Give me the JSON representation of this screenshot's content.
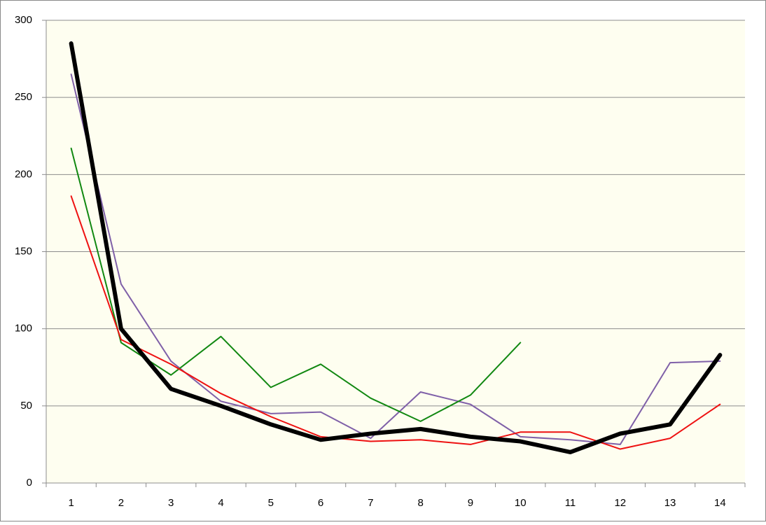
{
  "chart_data": {
    "type": "line",
    "categories": [
      "1",
      "2",
      "3",
      "4",
      "5",
      "6",
      "7",
      "8",
      "9",
      "10",
      "11",
      "12",
      "13",
      "14"
    ],
    "series": [
      {
        "color": "#000000",
        "values": [
          285,
          100,
          61,
          50,
          38,
          28,
          32,
          35,
          30,
          27,
          20,
          32,
          38,
          83
        ]
      },
      {
        "color": "#ee1111",
        "values": [
          186,
          93,
          77,
          58,
          43,
          30,
          27,
          28,
          25,
          33,
          33,
          22,
          29,
          51
        ]
      },
      {
        "color": "#118811",
        "values": [
          217,
          91,
          70,
          95,
          62,
          77,
          55,
          40,
          57,
          91,
          null,
          null,
          null,
          null
        ]
      },
      {
        "color": "#7f60a8",
        "values": [
          265,
          129,
          79,
          53,
          45,
          46,
          29,
          59,
          51,
          30,
          28,
          25,
          78,
          79
        ]
      }
    ],
    "ylim": [
      0,
      300
    ],
    "yticks": [
      0,
      50,
      100,
      150,
      200,
      250,
      300
    ],
    "grid": true
  }
}
